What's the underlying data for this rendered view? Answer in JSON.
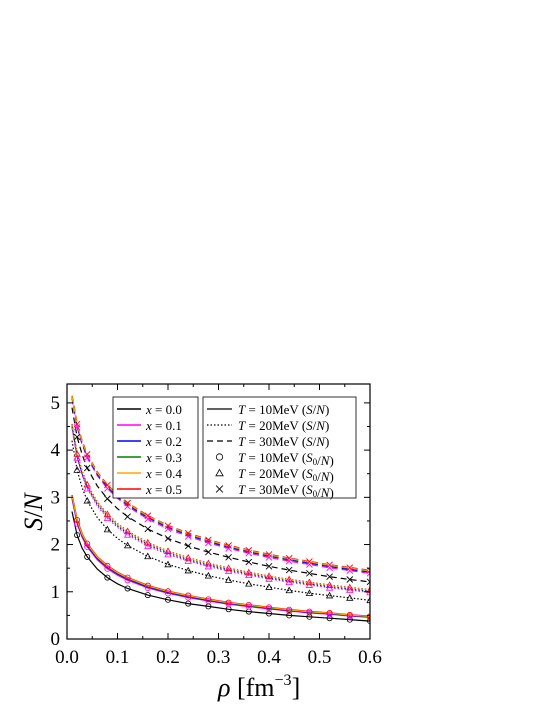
{
  "chart_data": {
    "type": "line",
    "xlabel": {
      "sym": "ρ",
      "unit_open": " [fm",
      "unit_exp": "−3",
      "unit_close": "]"
    },
    "ylabel": {
      "a": "S",
      "sep": "/",
      "b": "N"
    },
    "xlim": [
      0.0,
      0.6
    ],
    "ylim": [
      0,
      5.4
    ],
    "x_ticks": [
      "0.0",
      "0.1",
      "0.2",
      "0.3",
      "0.4",
      "0.5",
      "0.6"
    ],
    "y_ticks": [
      "0",
      "1",
      "2",
      "3",
      "4",
      "5"
    ],
    "grid": false,
    "legend_placement": "top-right",
    "composition_legend": [
      {
        "label": "x = 0.0",
        "color": "#000000"
      },
      {
        "label": "x = 0.1",
        "color": "#ff00ff"
      },
      {
        "label": "x = 0.2",
        "color": "#0000ff"
      },
      {
        "label": "x = 0.3",
        "color": "#008000"
      },
      {
        "label": "x = 0.4",
        "color": "#ffa500"
      },
      {
        "label": "x = 0.5",
        "color": "#ff0000"
      }
    ],
    "temperature_legend": [
      {
        "label": "T = 10MeV (S/N)",
        "style": "solid"
      },
      {
        "label": "T = 20MeV (S/N)",
        "style": "dotted"
      },
      {
        "label": "T = 30MeV (S/N)",
        "style": "dashed"
      },
      {
        "label": "T = 10MeV (S0/N)",
        "marker": "circle"
      },
      {
        "label": "T = 20MeV (S0/N)",
        "marker": "triangle"
      },
      {
        "label": "T = 30MeV (S0/N)",
        "marker": "cross"
      }
    ],
    "x": [
      0.01,
      0.02,
      0.03,
      0.04,
      0.06,
      0.08,
      0.1,
      0.12,
      0.16,
      0.2,
      0.24,
      0.28,
      0.32,
      0.36,
      0.4,
      0.44,
      0.48,
      0.52,
      0.56,
      0.6
    ],
    "series": [
      {
        "x_frac": 0.0,
        "T": 10,
        "style": "solid",
        "values": [
          2.7,
          2.2,
          1.92,
          1.74,
          1.48,
          1.3,
          1.17,
          1.07,
          0.93,
          0.83,
          0.75,
          0.69,
          0.63,
          0.58,
          0.54,
          0.5,
          0.47,
          0.44,
          0.41,
          0.38
        ]
      },
      {
        "x_frac": 0.0,
        "T": 20,
        "style": "dotted",
        "values": [
          4.2,
          3.58,
          3.2,
          2.93,
          2.57,
          2.32,
          2.13,
          1.98,
          1.75,
          1.58,
          1.45,
          1.34,
          1.25,
          1.17,
          1.1,
          1.03,
          0.97,
          0.92,
          0.87,
          0.82
        ]
      },
      {
        "x_frac": 0.0,
        "T": 30,
        "style": "dashed",
        "values": [
          4.9,
          4.28,
          3.9,
          3.62,
          3.24,
          2.97,
          2.76,
          2.59,
          2.33,
          2.13,
          1.97,
          1.84,
          1.73,
          1.63,
          1.54,
          1.46,
          1.39,
          1.32,
          1.26,
          1.21
        ]
      },
      {
        "x_frac": 0.5,
        "T": 10,
        "style": "solid",
        "values": [
          3.05,
          2.52,
          2.22,
          2.02,
          1.74,
          1.55,
          1.41,
          1.3,
          1.13,
          1.01,
          0.92,
          0.84,
          0.77,
          0.72,
          0.67,
          0.62,
          0.58,
          0.55,
          0.51,
          0.48
        ]
      },
      {
        "x_frac": 0.5,
        "T": 20,
        "style": "dotted",
        "values": [
          4.55,
          3.92,
          3.54,
          3.27,
          2.9,
          2.64,
          2.44,
          2.28,
          2.04,
          1.86,
          1.72,
          1.6,
          1.5,
          1.41,
          1.33,
          1.26,
          1.2,
          1.14,
          1.09,
          1.04
        ]
      },
      {
        "x_frac": 0.5,
        "T": 30,
        "style": "dashed",
        "values": [
          5.15,
          4.55,
          4.18,
          3.91,
          3.53,
          3.26,
          3.05,
          2.88,
          2.61,
          2.4,
          2.24,
          2.1,
          1.98,
          1.88,
          1.79,
          1.71,
          1.64,
          1.57,
          1.51,
          1.45
        ]
      }
    ],
    "marker_x": [
      0.02,
      0.04,
      0.08,
      0.12,
      0.16,
      0.2,
      0.24,
      0.28,
      0.32,
      0.36,
      0.4,
      0.44,
      0.48,
      0.52,
      0.56,
      0.6
    ]
  }
}
